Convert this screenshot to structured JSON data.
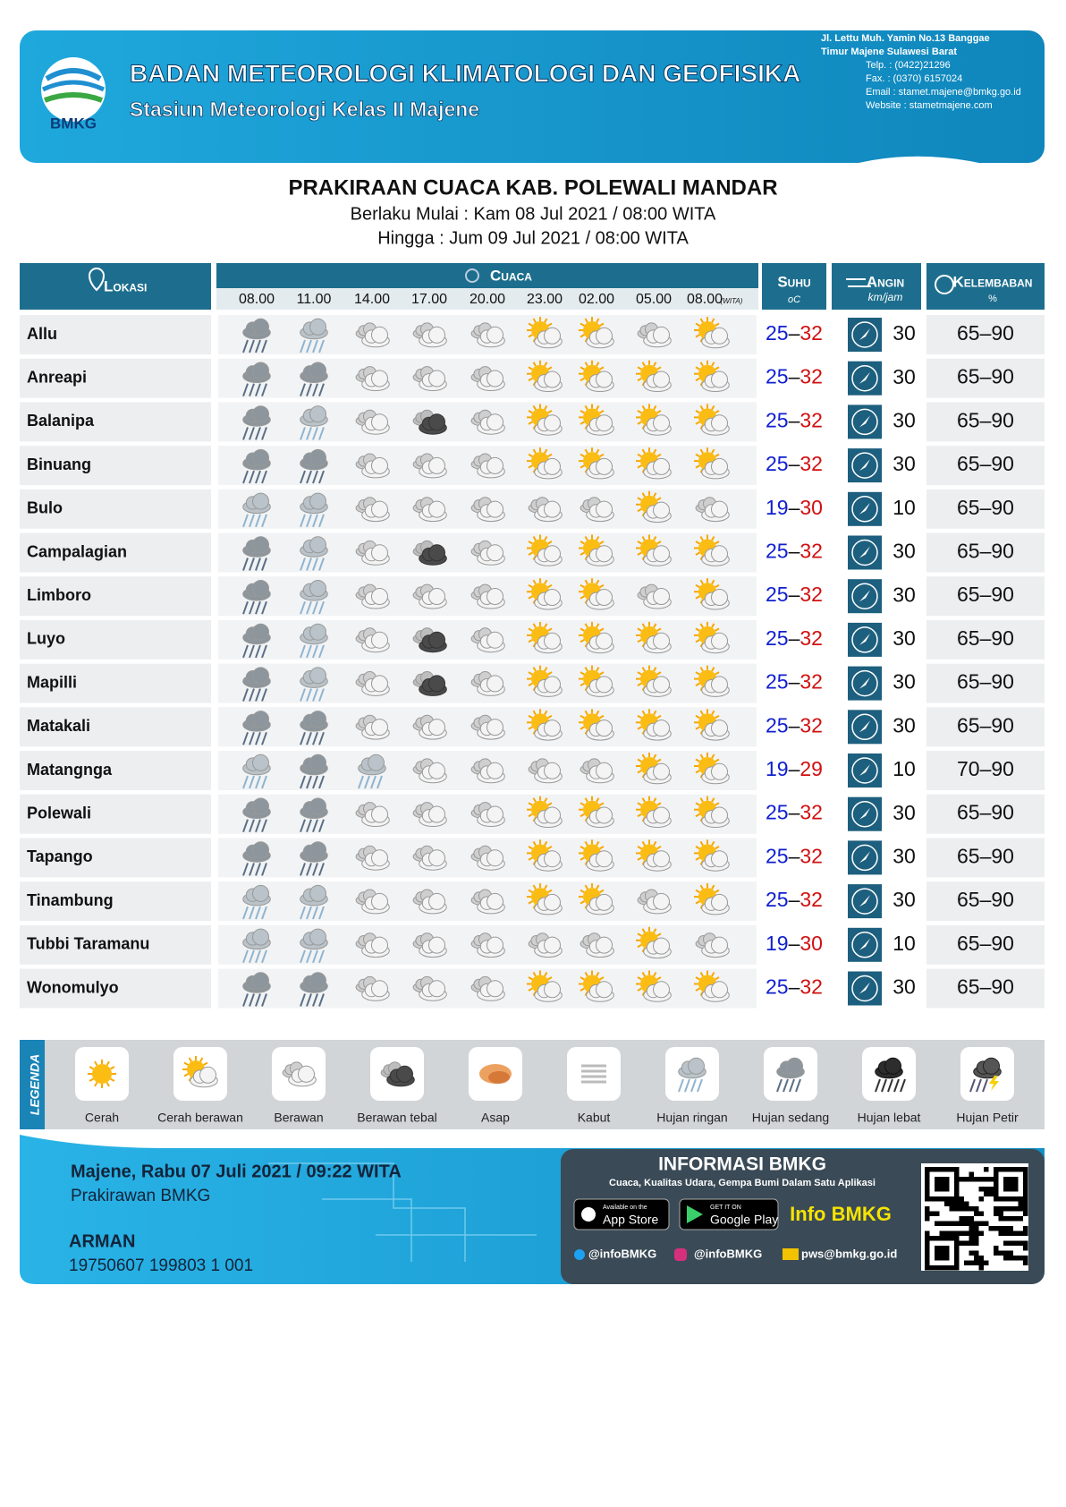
{
  "header": {
    "org": "BADAN METEOROLOGI KLIMATOLOGI DAN GEOFISIKA",
    "station": "Stasiun Meteorologi Kelas II Majene",
    "logo_text": "BMKG",
    "contact": [
      "Jl. Lettu Muh. Yamin No.13 Banggae",
      "Timur Majene Sulawesi Barat",
      "Telp. : (0422)21296",
      "Fax.   : (0370) 6157024",
      "Email : stamet.majene@bmkg.go.id",
      "Website : stametmajene.com"
    ]
  },
  "title": "PRAKIRAAN CUACA KAB. POLEWALI MANDAR",
  "valid_from": "Berlaku Mulai : Kam 08 Jul 2021 / 08:00 WITA",
  "valid_until": "Hingga : Jum 09 Jul 2021 / 08:00 WITA",
  "table": {
    "columns": {
      "location": "Lokasi",
      "weather": "Cuaca",
      "temperature": "Suhu",
      "temperature_unit": "oC",
      "wind": "Angin",
      "wind_unit": "km/jam",
      "humidity": "Kelembaban",
      "humidity_unit": "%"
    },
    "times": [
      "08.00",
      "11.00",
      "14.00",
      "17.00",
      "20.00",
      "23.00",
      "02.00",
      "05.00",
      "08.00"
    ],
    "time_zone": "(WITA)",
    "range_separator": "–",
    "rows": [
      {
        "name": "Allu",
        "weather": [
          "Hujan sedang",
          "Hujan ringan",
          "Berawan",
          "Berawan",
          "Berawan",
          "Cerah berawan",
          "Cerah berawan",
          "Berawan",
          "Cerah berawan"
        ],
        "temp_min": 25,
        "temp_max": 32,
        "wind_speed": 30,
        "hum_min": 65,
        "hum_max": 90
      },
      {
        "name": "Anreapi",
        "weather": [
          "Hujan sedang",
          "Hujan sedang",
          "Berawan",
          "Berawan",
          "Berawan",
          "Cerah berawan",
          "Cerah berawan",
          "Cerah berawan",
          "Cerah berawan"
        ],
        "temp_min": 25,
        "temp_max": 32,
        "wind_speed": 30,
        "hum_min": 65,
        "hum_max": 90
      },
      {
        "name": "Balanipa",
        "weather": [
          "Hujan sedang",
          "Hujan ringan",
          "Berawan",
          "Berawan tebal",
          "Berawan",
          "Cerah berawan",
          "Cerah berawan",
          "Cerah berawan",
          "Cerah berawan"
        ],
        "temp_min": 25,
        "temp_max": 32,
        "wind_speed": 30,
        "hum_min": 65,
        "hum_max": 90
      },
      {
        "name": "Binuang",
        "weather": [
          "Hujan sedang",
          "Hujan sedang",
          "Berawan",
          "Berawan",
          "Berawan",
          "Cerah berawan",
          "Cerah berawan",
          "Cerah berawan",
          "Cerah berawan"
        ],
        "temp_min": 25,
        "temp_max": 32,
        "wind_speed": 30,
        "hum_min": 65,
        "hum_max": 90
      },
      {
        "name": "Bulo",
        "weather": [
          "Hujan ringan",
          "Hujan ringan",
          "Berawan",
          "Berawan",
          "Berawan",
          "Berawan",
          "Berawan",
          "Cerah berawan",
          "Berawan"
        ],
        "temp_min": 19,
        "temp_max": 30,
        "wind_speed": 10,
        "hum_min": 65,
        "hum_max": 90
      },
      {
        "name": "Campalagian",
        "weather": [
          "Hujan sedang",
          "Hujan ringan",
          "Berawan",
          "Berawan tebal",
          "Berawan",
          "Cerah berawan",
          "Cerah berawan",
          "Cerah berawan",
          "Cerah berawan"
        ],
        "temp_min": 25,
        "temp_max": 32,
        "wind_speed": 30,
        "hum_min": 65,
        "hum_max": 90
      },
      {
        "name": "Limboro",
        "weather": [
          "Hujan sedang",
          "Hujan ringan",
          "Berawan",
          "Berawan",
          "Berawan",
          "Cerah berawan",
          "Cerah berawan",
          "Berawan",
          "Cerah berawan"
        ],
        "temp_min": 25,
        "temp_max": 32,
        "wind_speed": 30,
        "hum_min": 65,
        "hum_max": 90
      },
      {
        "name": "Luyo",
        "weather": [
          "Hujan sedang",
          "Hujan ringan",
          "Berawan",
          "Berawan tebal",
          "Berawan",
          "Cerah berawan",
          "Cerah berawan",
          "Cerah berawan",
          "Cerah berawan"
        ],
        "temp_min": 25,
        "temp_max": 32,
        "wind_speed": 30,
        "hum_min": 65,
        "hum_max": 90
      },
      {
        "name": "Mapilli",
        "weather": [
          "Hujan sedang",
          "Hujan ringan",
          "Berawan",
          "Berawan tebal",
          "Berawan",
          "Cerah berawan",
          "Cerah berawan",
          "Cerah berawan",
          "Cerah berawan"
        ],
        "temp_min": 25,
        "temp_max": 32,
        "wind_speed": 30,
        "hum_min": 65,
        "hum_max": 90
      },
      {
        "name": "Matakali",
        "weather": [
          "Hujan sedang",
          "Hujan sedang",
          "Berawan",
          "Berawan",
          "Berawan",
          "Cerah berawan",
          "Cerah berawan",
          "Cerah berawan",
          "Cerah berawan"
        ],
        "temp_min": 25,
        "temp_max": 32,
        "wind_speed": 30,
        "hum_min": 65,
        "hum_max": 90
      },
      {
        "name": "Matangnga",
        "weather": [
          "Hujan ringan",
          "Hujan sedang",
          "Hujan ringan",
          "Berawan",
          "Berawan",
          "Berawan",
          "Berawan",
          "Cerah berawan",
          "Cerah berawan"
        ],
        "temp_min": 19,
        "temp_max": 29,
        "wind_speed": 10,
        "hum_min": 70,
        "hum_max": 90
      },
      {
        "name": "Polewali",
        "weather": [
          "Hujan sedang",
          "Hujan sedang",
          "Berawan",
          "Berawan",
          "Berawan",
          "Cerah berawan",
          "Cerah berawan",
          "Cerah berawan",
          "Cerah berawan"
        ],
        "temp_min": 25,
        "temp_max": 32,
        "wind_speed": 30,
        "hum_min": 65,
        "hum_max": 90
      },
      {
        "name": "Tapango",
        "weather": [
          "Hujan sedang",
          "Hujan sedang",
          "Berawan",
          "Berawan",
          "Berawan",
          "Cerah berawan",
          "Cerah berawan",
          "Cerah berawan",
          "Cerah berawan"
        ],
        "temp_min": 25,
        "temp_max": 32,
        "wind_speed": 30,
        "hum_min": 65,
        "hum_max": 90
      },
      {
        "name": "Tinambung",
        "weather": [
          "Hujan ringan",
          "Hujan ringan",
          "Berawan",
          "Berawan",
          "Berawan",
          "Cerah berawan",
          "Cerah berawan",
          "Berawan",
          "Cerah berawan"
        ],
        "temp_min": 25,
        "temp_max": 32,
        "wind_speed": 30,
        "hum_min": 65,
        "hum_max": 90
      },
      {
        "name": "Tubbi Taramanu",
        "weather": [
          "Hujan ringan",
          "Hujan ringan",
          "Berawan",
          "Berawan",
          "Berawan",
          "Berawan",
          "Berawan",
          "Cerah berawan",
          "Berawan"
        ],
        "temp_min": 19,
        "temp_max": 30,
        "wind_speed": 10,
        "hum_min": 65,
        "hum_max": 90
      },
      {
        "name": "Wonomulyo",
        "weather": [
          "Hujan sedang",
          "Hujan sedang",
          "Berawan",
          "Berawan",
          "Berawan",
          "Cerah berawan",
          "Cerah berawan",
          "Cerah berawan",
          "Cerah berawan"
        ],
        "temp_min": 25,
        "temp_max": 32,
        "wind_speed": 30,
        "hum_min": 65,
        "hum_max": 90
      }
    ]
  },
  "legend": {
    "title": "LEGENDA",
    "items": [
      "Cerah",
      "Cerah berawan",
      "Berawan",
      "Berawan tebal",
      "Asap",
      "Kabut",
      "Hujan ringan",
      "Hujan sedang",
      "Hujan lebat",
      "Hujan Petir"
    ]
  },
  "footer": {
    "place_date": "Majene, Rabu 07 Juli 2021 / 09:22 WITA",
    "role": "Prakirawan BMKG",
    "forecaster": "ARMAN",
    "nip": "19750607 199803 1 001",
    "info_title": "INFORMASI BMKG",
    "info_subtitle": "Cuaca, Kualitas Udara, Gempa Bumi Dalam Satu Aplikasi",
    "appstore_small": "Available on the",
    "appstore": "App Store",
    "googleplay_small": "GET IT ON",
    "googleplay": "Google Play",
    "app_name": "Info BMKG",
    "twitter": "@infoBMKG",
    "instagram": "@infoBMKG",
    "email": "pws@bmkg.go.id"
  }
}
